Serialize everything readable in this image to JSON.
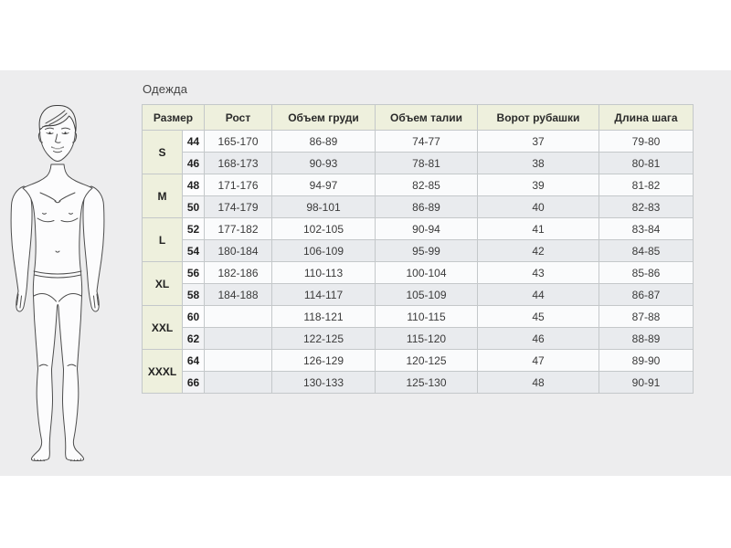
{
  "title": "Одежда",
  "colors": {
    "page_margin": "#ffffff",
    "page_band": "#ededee",
    "header_bg": "#eef0dd",
    "row_light": "#fafbfc",
    "row_dark": "#e9ebee",
    "border": "#c4c8ca",
    "outer_border": "#96989a",
    "text": "#3a3a3a",
    "header_text": "#2b2b2b",
    "title_text": "#444444"
  },
  "figure": {
    "alt": "male-body-outline-illustration"
  },
  "table": {
    "headers": {
      "size": "Размер",
      "height": "Рост",
      "chest": "Объем груди",
      "waist": "Объем талии",
      "collar": "Ворот рубашки",
      "step": "Длина шага"
    },
    "groups": [
      {
        "label": "S",
        "rows": [
          {
            "size": "44",
            "height": "165-170",
            "chest": "86-89",
            "waist": "74-77",
            "collar": "37",
            "step": "79-80"
          },
          {
            "size": "46",
            "height": "168-173",
            "chest": "90-93",
            "waist": "78-81",
            "collar": "38",
            "step": "80-81"
          }
        ]
      },
      {
        "label": "M",
        "rows": [
          {
            "size": "48",
            "height": "171-176",
            "chest": "94-97",
            "waist": "82-85",
            "collar": "39",
            "step": "81-82"
          },
          {
            "size": "50",
            "height": "174-179",
            "chest": "98-101",
            "waist": "86-89",
            "collar": "40",
            "step": "82-83"
          }
        ]
      },
      {
        "label": "L",
        "rows": [
          {
            "size": "52",
            "height": "177-182",
            "chest": "102-105",
            "waist": "90-94",
            "collar": "41",
            "step": "83-84"
          },
          {
            "size": "54",
            "height": "180-184",
            "chest": "106-109",
            "waist": "95-99",
            "collar": "42",
            "step": "84-85"
          }
        ]
      },
      {
        "label": "XL",
        "rows": [
          {
            "size": "56",
            "height": "182-186",
            "chest": "110-113",
            "waist": "100-104",
            "collar": "43",
            "step": "85-86"
          },
          {
            "size": "58",
            "height": "184-188",
            "chest": "114-117",
            "waist": "105-109",
            "collar": "44",
            "step": "86-87"
          }
        ]
      },
      {
        "label": "XXL",
        "rows": [
          {
            "size": "60",
            "height": "",
            "chest": "118-121",
            "waist": "110-115",
            "collar": "45",
            "step": "87-88"
          },
          {
            "size": "62",
            "height": "",
            "chest": "122-125",
            "waist": "115-120",
            "collar": "46",
            "step": "88-89"
          }
        ]
      },
      {
        "label": "XXXL",
        "rows": [
          {
            "size": "64",
            "height": "",
            "chest": "126-129",
            "waist": "120-125",
            "collar": "47",
            "step": "89-90"
          },
          {
            "size": "66",
            "height": "",
            "chest": "130-133",
            "waist": "125-130",
            "collar": "48",
            "step": "90-91"
          }
        ]
      }
    ]
  }
}
